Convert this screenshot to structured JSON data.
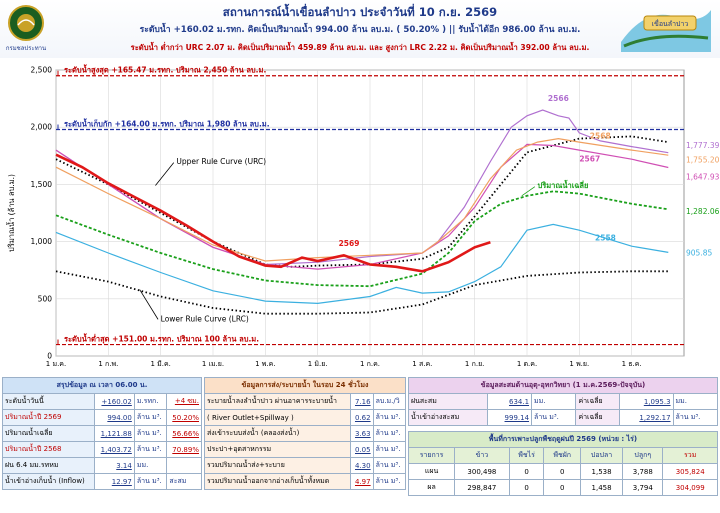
{
  "header": {
    "title": "สถานการณ์น้ำเขื่อนลำปาว ประจำวันที่ 10 ก.ย. 2569",
    "line1": "ระดับน้ำ +160.02 ม.รทก.  คิดเป็นปริมาณน้ำ 994.00 ล้าน ลบ.ม. ( 50.20% )  || รับน้ำได้อีก 986.00 ล้าน ลบ.ม.",
    "line2": "ระดับน้ำ ต่ำกว่า URC 2.07 ม. คิดเป็นปริมาณน้ำ 459.89 ล้าน ลบ.ม. และ สูงกว่า LRC 2.22 ม. คิดเป็นปริมาณน้ำ 392.00 ล้าน ลบ.ม.",
    "logo_left_text": "กรมชลประทาน",
    "logo_right_text": "เขื่อนลำปาว",
    "accent": "#1f3a8a",
    "alert": "#c00000"
  },
  "chart_data": {
    "type": "line",
    "ylabel": "ปริมาณน้ำ (ล้าน ลบ.ม.)",
    "ylim": [
      0,
      2500
    ],
    "yticks": [
      "0",
      "500",
      "1,000",
      "1,500",
      "2,000",
      "2,500"
    ],
    "xticks": [
      "1 ม.ค.",
      "1 ก.พ.",
      "1 มี.ค.",
      "1 เม.ย.",
      "1 พ.ค.",
      "1 มิ.ย.",
      "1 ก.ค.",
      "1 ส.ค.",
      "1 ก.ย.",
      "1 ต.ค.",
      "1 พ.ย.",
      "1 ธ.ค."
    ],
    "grid": true,
    "reference_lines": [
      {
        "label": "ระดับน้ำสูงสุด +165.47 ม.รทก. ปริมาณ 2,450 ล้าน ลบ.ม.",
        "value": 2450,
        "color": "#c00000"
      },
      {
        "label": "ระดับน้ำเก็บกัก +164.00 ม.รทก. ปริมาณ 1,980 ล้าน ลบ.ม.",
        "value": 1980,
        "color": "#1f2fa0"
      },
      {
        "label": "ระดับน้ำต่ำสุด +151.00 ม.รทก. ปริมาณ 100 ล้าน ลบ.ม.",
        "value": 100,
        "color": "#c00000"
      }
    ],
    "annotations": {
      "urc": "Upper Rule Curve (URC)",
      "lrc": "Lower Rule Curve (LRC)",
      "avg": "ปริมาณน้ำเฉลี่ย"
    },
    "series": [
      {
        "name": "Upper Rule Curve (URC)",
        "color": "#000000",
        "dash": true,
        "x": [
          0,
          1,
          2,
          3,
          4,
          4.5,
          5,
          6,
          7,
          7.5,
          8,
          9,
          10,
          11,
          11.7
        ],
        "values": [
          1720,
          1500,
          1250,
          1000,
          800,
          780,
          790,
          800,
          850,
          950,
          1220,
          1780,
          1900,
          1920,
          1870
        ]
      },
      {
        "name": "Lower Rule Curve (LRC)",
        "color": "#000000",
        "dash": true,
        "x": [
          0,
          1,
          2,
          3,
          4,
          5,
          6,
          7,
          8,
          9,
          10,
          11,
          11.7
        ],
        "values": [
          740,
          650,
          520,
          420,
          370,
          370,
          380,
          450,
          620,
          700,
          730,
          740,
          740
        ]
      },
      {
        "name": "ปริมาณน้ำเฉลี่ย",
        "color": "#1aa01a",
        "dash": true,
        "x": [
          0,
          1,
          2,
          3,
          4,
          5,
          6,
          7,
          7.5,
          8,
          8.5,
          9,
          9.5,
          10,
          11,
          11.7
        ],
        "values": [
          1230,
          1060,
          900,
          760,
          660,
          620,
          610,
          720,
          900,
          1180,
          1330,
          1400,
          1440,
          1420,
          1330,
          1282.06
        ]
      },
      {
        "name": "2558",
        "color": "#3bb0e0",
        "x": [
          0,
          1,
          2,
          3,
          4,
          5,
          6,
          6.5,
          7,
          7.5,
          8,
          8.5,
          9,
          9.5,
          10,
          11,
          11.7
        ],
        "values": [
          1080,
          900,
          730,
          570,
          480,
          460,
          520,
          600,
          550,
          560,
          650,
          780,
          1100,
          1150,
          1100,
          960,
          905.85
        ]
      },
      {
        "name": "2566",
        "color": "#b070d0",
        "x": [
          0,
          1,
          2,
          3,
          4,
          5,
          6,
          7,
          7.3,
          7.8,
          8.3,
          8.7,
          9,
          9.3,
          9.6,
          9.8,
          10,
          10.4,
          11,
          11.7
        ],
        "values": [
          1800,
          1500,
          1200,
          950,
          800,
          820,
          870,
          900,
          1000,
          1300,
          1700,
          2000,
          2100,
          2150,
          2100,
          2080,
          1950,
          1880,
          1830,
          1777.39
        ]
      },
      {
        "name": "2567",
        "color": "#d04fb4",
        "x": [
          0,
          1,
          2,
          3,
          4,
          5,
          6,
          7,
          7.5,
          8,
          8.5,
          9,
          9.5,
          10,
          11,
          11.7
        ],
        "values": [
          1800,
          1500,
          1200,
          950,
          800,
          760,
          800,
          900,
          1050,
          1300,
          1650,
          1850,
          1840,
          1800,
          1720,
          1647.93
        ]
      },
      {
        "name": "2568",
        "color": "#f0a060",
        "x": [
          0,
          1,
          2,
          3,
          4,
          5,
          6,
          7,
          7.3,
          7.8,
          8.3,
          8.8,
          9.2,
          9.6,
          10,
          11,
          11.7
        ],
        "values": [
          1650,
          1420,
          1200,
          970,
          830,
          860,
          880,
          900,
          1000,
          1200,
          1550,
          1800,
          1870,
          1900,
          1870,
          1800,
          1755.2
        ]
      },
      {
        "name": "2569",
        "color": "#e01818",
        "bold": true,
        "x": [
          0,
          0.5,
          1,
          1.5,
          2,
          2.5,
          3,
          3.5,
          4,
          4.3,
          4.7,
          5,
          5.5,
          6,
          6.5,
          7,
          7.5,
          8,
          8.3
        ],
        "values": [
          1760,
          1650,
          1510,
          1390,
          1270,
          1140,
          1000,
          870,
          790,
          780,
          860,
          830,
          880,
          800,
          780,
          740,
          820,
          950,
          994
        ]
      }
    ],
    "end_labels": [
      {
        "text": "1,777.39",
        "series": "2566"
      },
      {
        "text": "1,755.20",
        "series": "2568"
      },
      {
        "text": "1,647.93",
        "series": "2567"
      },
      {
        "text": "1,282.06",
        "series": "ปริมาณน้ำเฉลี่ย"
      },
      {
        "text": "905.85",
        "series": "2558"
      }
    ]
  },
  "tables": {
    "summary": {
      "title": "สรุปข้อมูล ณ เวลา 06.00 น.",
      "rows": [
        [
          "ระดับน้ำวันนี้",
          "+160.02",
          "ม.รทก.",
          "+4 ซม."
        ],
        [
          "ปริมาณน้ำปี 2569",
          "994.00",
          "ล้าน ม³.",
          "50.20%"
        ],
        [
          "ปริมาณน้ำเฉลี่ย",
          "1,121.88",
          "ล้าน ม³.",
          "56.66%"
        ],
        [
          "ปริมาณน้ำปี 2568",
          "1,403.72",
          "ล้าน ม³.",
          "70.89%"
        ],
        [
          "ฝน  6.4  มม.รทหม",
          "3.14",
          "มม.",
          ""
        ],
        [
          "น้ำเข้าอ่างเก็บน้ำ (Inflow)",
          "12.97",
          "ล้าน ม³.",
          "สะสม"
        ]
      ]
    },
    "release": {
      "title": "ข้อมูลการส่ง/ระบายน้ำ ในรอบ 24 ชั่วโมง",
      "rows": [
        [
          "ระบายน้ำลงลำน้ำปาว ผ่านอาคารระบายน้ำ",
          "7.16",
          "ลบ.ม./วิ"
        ],
        [
          "( River Outlet+Spillway )",
          "0.62",
          "ล้าน ม³."
        ],
        [
          "ส่งเข้าระบบส่งน้ำ (คลองส่งน้ำ)",
          "3.63",
          "ล้าน ม³."
        ],
        [
          "ประปา+อุตสาหกรรม",
          "0.05",
          "ล้าน ม³."
        ],
        [
          "รวมปริมาณน้ำส่ง+ระบาย",
          "4.30",
          "ล้าน ม³."
        ],
        [
          "รวมปริมาณน้ำออกจากอ่างเก็บน้ำทั้งหมด",
          "4.97",
          "ล้าน ม³."
        ]
      ]
    },
    "cumulative": {
      "title": "ข้อมูลสะสมด้านอุตุ-อุทกวิทยา (1 ม.ค.2569-ปัจจุบัน)",
      "rows": [
        [
          "ฝนสะสม",
          "634.1",
          "มม.",
          "ค่าเฉลี่ย",
          "1,095.3",
          "มม."
        ],
        [
          "น้ำเข้าอ่างสะสม",
          "999.14",
          "ล้าน ม³.",
          "ค่าเฉลี่ย",
          "1,292.17",
          "ล้าน ม³."
        ]
      ]
    },
    "crops": {
      "title": "พื้นที่การเพาะปลูกพืชฤดูฝนปี 2569  (หน่วย : ไร่)",
      "headers": [
        "รายการ",
        "ข้าว",
        "พืชไร่",
        "พืชผัก",
        "ปอปลา",
        "ปลูกๆ",
        "รวม"
      ],
      "rows": [
        [
          "แผน",
          "300,498",
          "0",
          "0",
          "1,538",
          "3,788",
          "305,824"
        ],
        [
          "ผล",
          "298,847",
          "0",
          "0",
          "1,458",
          "3,794",
          "304,099"
        ]
      ]
    }
  }
}
